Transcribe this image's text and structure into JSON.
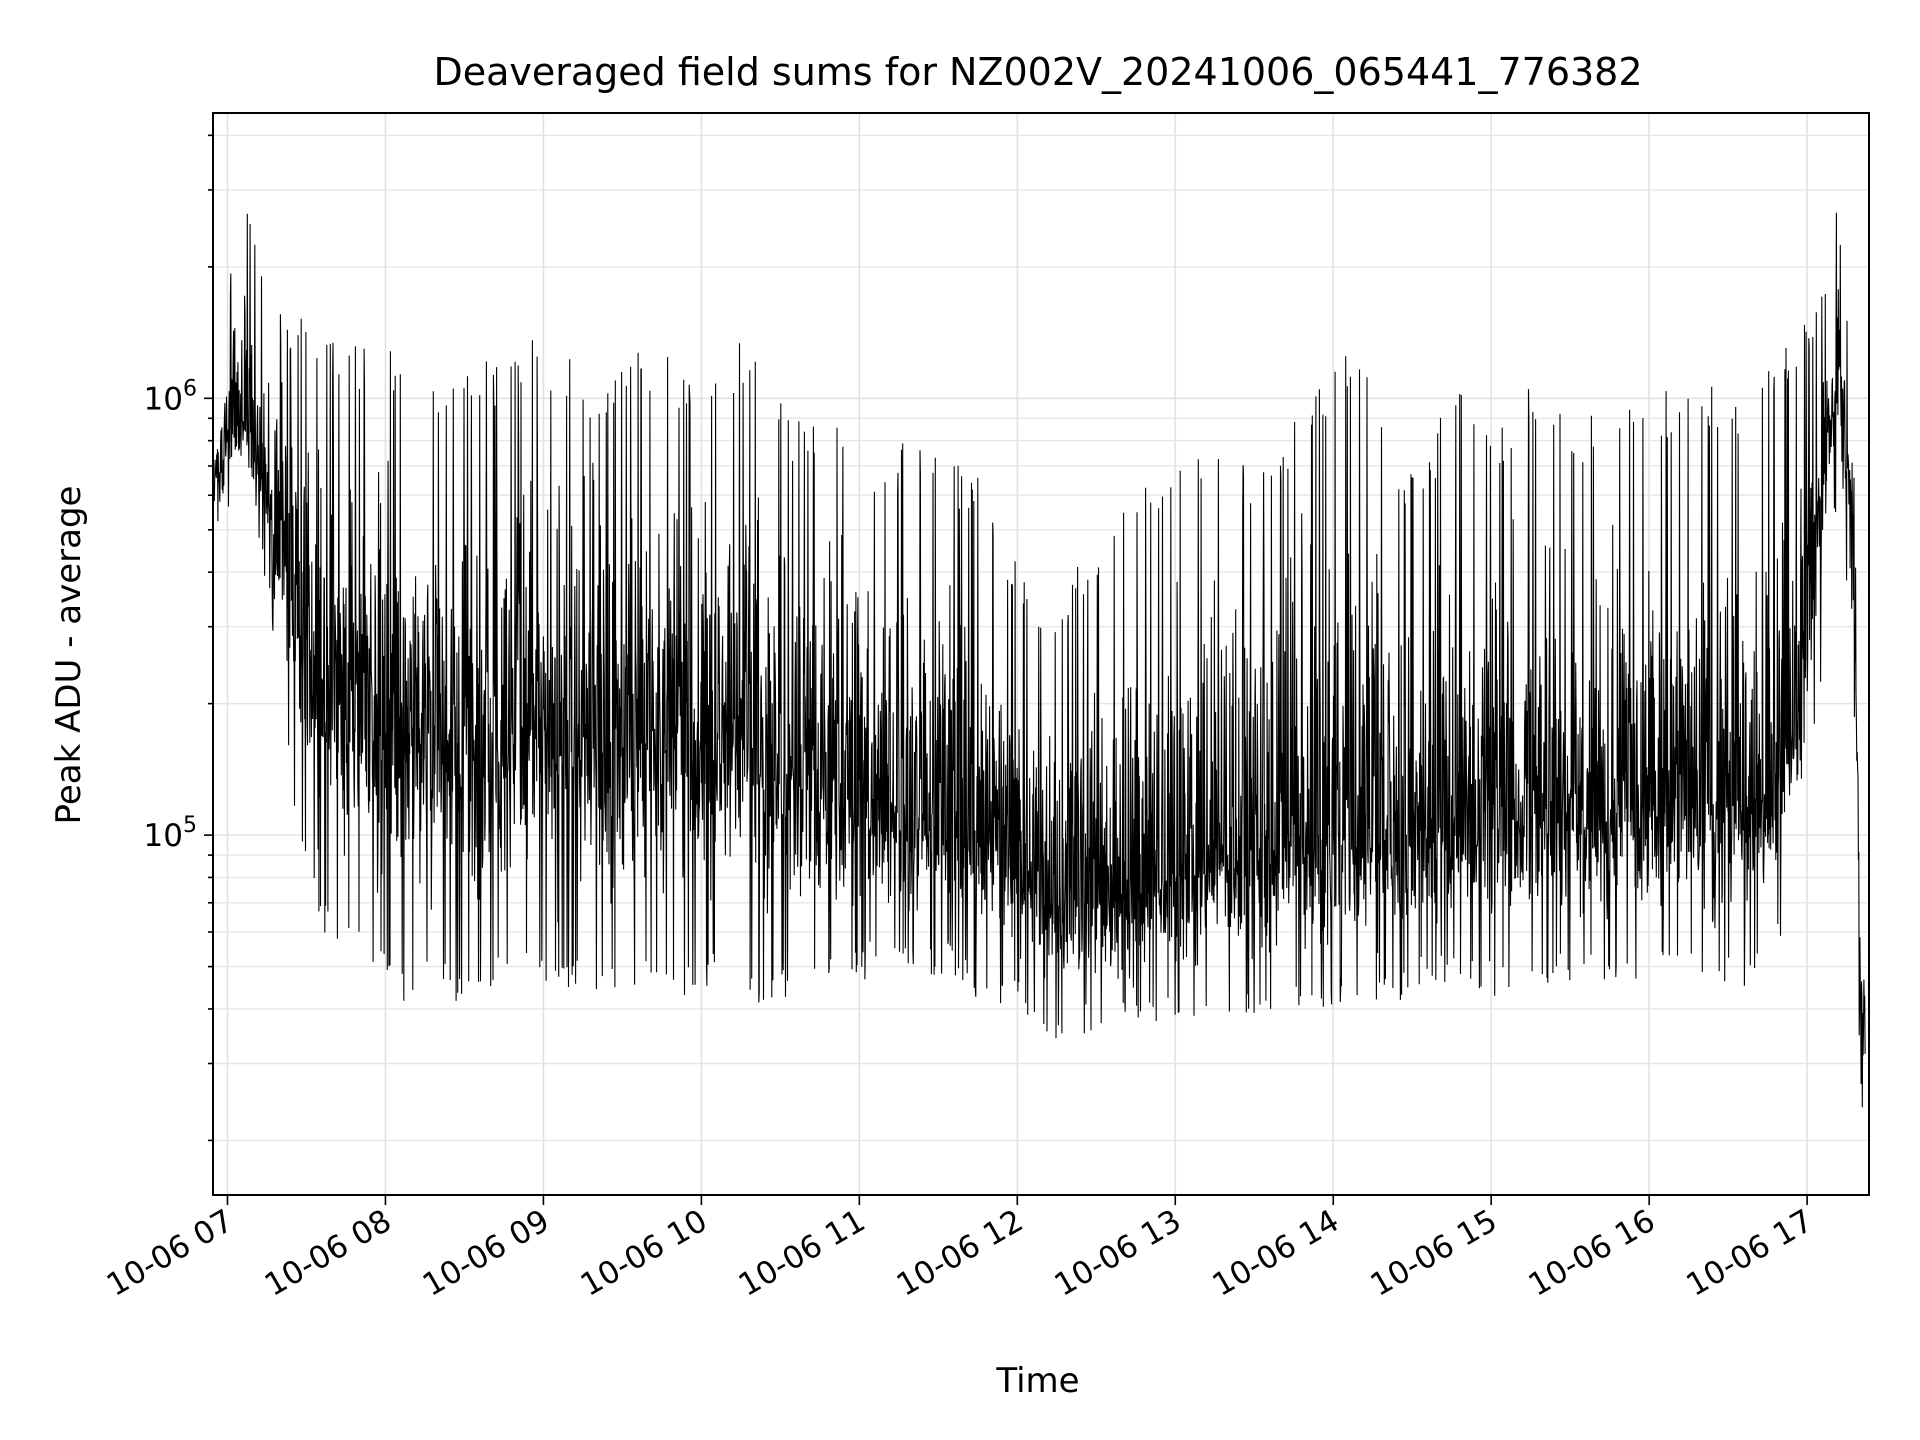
{
  "chart_data": {
    "type": "line",
    "title": "Deaveraged field sums for NZ002V_20241006_065441_776382",
    "xlabel": "Time",
    "ylabel": "Peak ADU - average",
    "yscale": "log",
    "ylim": [
      15000,
      4500000
    ],
    "xlim": [
      "2024-10-06 06:54:30",
      "2024-10-06 17:23:30"
    ],
    "grid": true,
    "legend": "none",
    "line_color": "#000000",
    "x_ticks": [
      {
        "label": "10-06 07",
        "value": "2024-10-06 07:00"
      },
      {
        "label": "10-06 08",
        "value": "2024-10-06 08:00"
      },
      {
        "label": "10-06 09",
        "value": "2024-10-06 09:00"
      },
      {
        "label": "10-06 10",
        "value": "2024-10-06 10:00"
      },
      {
        "label": "10-06 11",
        "value": "2024-10-06 11:00"
      },
      {
        "label": "10-06 12",
        "value": "2024-10-06 12:00"
      },
      {
        "label": "10-06 13",
        "value": "2024-10-06 13:00"
      },
      {
        "label": "10-06 14",
        "value": "2024-10-06 14:00"
      },
      {
        "label": "10-06 15",
        "value": "2024-10-06 15:00"
      },
      {
        "label": "10-06 16",
        "value": "2024-10-06 16:00"
      },
      {
        "label": "10-06 17",
        "value": "2024-10-06 17:00"
      }
    ],
    "y_ticks": [
      {
        "base": "10",
        "exp": "5",
        "value": 100000
      },
      {
        "base": "10",
        "exp": "6",
        "value": 1000000
      }
    ],
    "series": [
      {
        "x": [
          "2024-10-06 06:55",
          "2024-10-06 07:05",
          "2024-10-06 07:15",
          "2024-10-06 07:25",
          "2024-10-06 07:35",
          "2024-10-06 07:45",
          "2024-10-06 07:55",
          "2024-10-06 08:05",
          "2024-10-06 08:15",
          "2024-10-06 08:25",
          "2024-10-06 08:35",
          "2024-10-06 08:45",
          "2024-10-06 08:55",
          "2024-10-06 09:05",
          "2024-10-06 09:15",
          "2024-10-06 09:25",
          "2024-10-06 09:35",
          "2024-10-06 09:45",
          "2024-10-06 09:55",
          "2024-10-06 10:05",
          "2024-10-06 10:15",
          "2024-10-06 10:25",
          "2024-10-06 10:35",
          "2024-10-06 10:45",
          "2024-10-06 10:55",
          "2024-10-06 11:05",
          "2024-10-06 11:15",
          "2024-10-06 11:25",
          "2024-10-06 11:35",
          "2024-10-06 11:45",
          "2024-10-06 11:55",
          "2024-10-06 12:05",
          "2024-10-06 12:15",
          "2024-10-06 12:25",
          "2024-10-06 12:35",
          "2024-10-06 12:45",
          "2024-10-06 12:55",
          "2024-10-06 13:05",
          "2024-10-06 13:15",
          "2024-10-06 13:25",
          "2024-10-06 13:35",
          "2024-10-06 13:45",
          "2024-10-06 13:55",
          "2024-10-06 14:05",
          "2024-10-06 14:15",
          "2024-10-06 14:25",
          "2024-10-06 14:35",
          "2024-10-06 14:45",
          "2024-10-06 14:55",
          "2024-10-06 15:05",
          "2024-10-06 15:15",
          "2024-10-06 15:25",
          "2024-10-06 15:35",
          "2024-10-06 15:45",
          "2024-10-06 15:55",
          "2024-10-06 16:05",
          "2024-10-06 16:15",
          "2024-10-06 16:25",
          "2024-10-06 16:35",
          "2024-10-06 16:45",
          "2024-10-06 16:55",
          "2024-10-06 17:05",
          "2024-10-06 17:12",
          "2024-10-06 17:18",
          "2024-10-06 17:20",
          "2024-10-06 17:22"
        ],
        "y_low": [
          450000,
          600000,
          350000,
          110000,
          60000,
          55000,
          50000,
          40000,
          45000,
          42000,
          40000,
          45000,
          48000,
          42000,
          45000,
          43000,
          45000,
          42000,
          43000,
          45000,
          40000,
          42000,
          42000,
          45000,
          45000,
          45000,
          48000,
          46000,
          48000,
          42000,
          40000,
          38000,
          34000,
          34000,
          36000,
          38000,
          37000,
          36000,
          38000,
          38000,
          38000,
          40000,
          38000,
          40000,
          42000,
          40000,
          45000,
          45000,
          43000,
          42000,
          45000,
          45000,
          46000,
          45000,
          44000,
          46000,
          45000,
          45000,
          45000,
          45000,
          75000,
          220000,
          650000,
          180000,
          23000,
          20000
        ],
        "y_high": [
          800000,
          3500000,
          1700000,
          1600000,
          1500000,
          1400000,
          1300000,
          1300000,
          1200000,
          1200000,
          1200000,
          1300000,
          1400000,
          1300000,
          1200000,
          1100000,
          1300000,
          1300000,
          1200000,
          1200000,
          1400000,
          1100000,
          900000,
          900000,
          900000,
          800000,
          800000,
          800000,
          750000,
          700000,
          500000,
          400000,
          380000,
          420000,
          550000,
          650000,
          700000,
          900000,
          800000,
          700000,
          800000,
          900000,
          1100000,
          1400000,
          1100000,
          750000,
          700000,
          1100000,
          900000,
          900000,
          1100000,
          1000000,
          900000,
          1000000,
          1000000,
          1050000,
          1100000,
          1100000,
          1000000,
          1200000,
          1500000,
          1800000,
          3100000,
          1200000,
          200000,
          50000
        ],
        "y_typical": [
          650000,
          950000,
          650000,
          350000,
          220000,
          200000,
          190000,
          180000,
          180000,
          170000,
          170000,
          180000,
          175000,
          170000,
          165000,
          160000,
          165000,
          160000,
          160000,
          160000,
          155000,
          150000,
          140000,
          130000,
          125000,
          120000,
          115000,
          110000,
          105000,
          100000,
          90000,
          80000,
          70000,
          70000,
          72000,
          78000,
          80000,
          85000,
          90000,
          92000,
          95000,
          100000,
          100000,
          105000,
          105000,
          100000,
          105000,
          110000,
          110000,
          110000,
          115000,
          115000,
          115000,
          118000,
          118000,
          120000,
          118000,
          120000,
          120000,
          125000,
          160000,
          600000,
          1200000,
          400000,
          50000,
          35000
        ]
      }
    ]
  }
}
